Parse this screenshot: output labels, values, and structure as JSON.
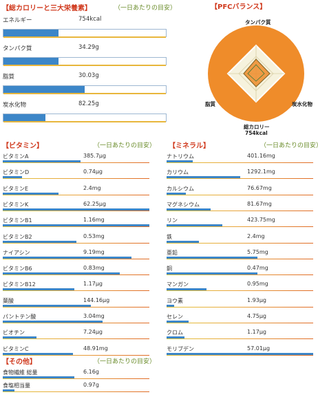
{
  "colors": {
    "accent_red": "#d03a1e",
    "note_green": "#6a8c2a",
    "bar_blue": "#3c86c8",
    "ref_orange": "#e8a23a",
    "pfc_orange": "#ef8c2a"
  },
  "main": {
    "title": "【総カロリーと三大栄養素】",
    "note": "（一日あたりの目安）",
    "items": [
      {
        "label": "エネルギー",
        "value": "754kcal",
        "level": 0.34
      },
      {
        "label": "タンパク質",
        "value": "34.29g",
        "level": 0.34
      },
      {
        "label": "脂質",
        "value": "30.03g",
        "level": 0.5
      },
      {
        "label": "炭水化物",
        "value": "82.25g",
        "level": 0.26
      }
    ]
  },
  "pfc": {
    "title": "【PFCバランス】",
    "axes": [
      "タンパク質",
      "炭水化物",
      "総カロリー",
      "脂質"
    ],
    "calorie_value": "754kcal"
  },
  "vitamins": {
    "title": "【ビタミン】",
    "note": "（一日あたりの目安）",
    "items": [
      {
        "label": "ビタミンA",
        "value": "385.7μg",
        "level": 0.53
      },
      {
        "label": "ビタミンD",
        "value": "0.74μg",
        "level": 0.13
      },
      {
        "label": "ビタミンE",
        "value": "2.4mg",
        "level": 0.38
      },
      {
        "label": "ビタミンK",
        "value": "62.25μg",
        "level": 1.0
      },
      {
        "label": "ビタミンB1",
        "value": "1.16mg",
        "level": 1.0
      },
      {
        "label": "ビタミンB2",
        "value": "0.53mg",
        "level": 0.5
      },
      {
        "label": "ナイアシン",
        "value": "9.19mg",
        "level": 0.88
      },
      {
        "label": "ビタミンB6",
        "value": "0.83mg",
        "level": 0.8
      },
      {
        "label": "ビタミンB12",
        "value": "1.17μg",
        "level": 0.49
      },
      {
        "label": "葉酸",
        "value": "144.16μg",
        "level": 0.6
      },
      {
        "label": "パントテン酸",
        "value": "3.04mg",
        "level": 0.68
      },
      {
        "label": "ビオチン",
        "value": "7.24μg",
        "level": 0.23
      },
      {
        "label": "ビタミンC",
        "value": "48.91mg",
        "level": 0.48
      }
    ]
  },
  "minerals": {
    "title": "【ミネラル】",
    "note": "（一日あたりの目安）",
    "items": [
      {
        "label": "ナトリウム",
        "value": "401.16mg",
        "level": 0.18
      },
      {
        "label": "カリウム",
        "value": "1292.1mg",
        "level": 0.5
      },
      {
        "label": "カルシウム",
        "value": "76.67mg",
        "level": 0.13
      },
      {
        "label": "マグネシウム",
        "value": "81.67mg",
        "level": 0.3
      },
      {
        "label": "リン",
        "value": "423.75mg",
        "level": 0.38
      },
      {
        "label": "鉄",
        "value": "2.4mg",
        "level": 0.22
      },
      {
        "label": "亜鉛",
        "value": "5.75mg",
        "level": 0.62
      },
      {
        "label": "銅",
        "value": "0.47mg",
        "level": 0.62
      },
      {
        "label": "マンガン",
        "value": "0.95mg",
        "level": 0.27
      },
      {
        "label": "ヨウ素",
        "value": "1.93μg",
        "level": 0.05
      },
      {
        "label": "セレン",
        "value": "4.75μg",
        "level": 0.15
      },
      {
        "label": "クロム",
        "value": "1.17μg",
        "level": 0.12
      },
      {
        "label": "モリブデン",
        "value": "57.01μg",
        "level": 1.0
      }
    ]
  },
  "others": {
    "title": "【その他】",
    "note": "（一日あたりの目安）",
    "items": [
      {
        "label": "食物繊維 総量",
        "value": "6.16g",
        "level": 0.49
      },
      {
        "label": "食塩相当量",
        "value": "0.97g",
        "level": 0.08
      }
    ]
  }
}
